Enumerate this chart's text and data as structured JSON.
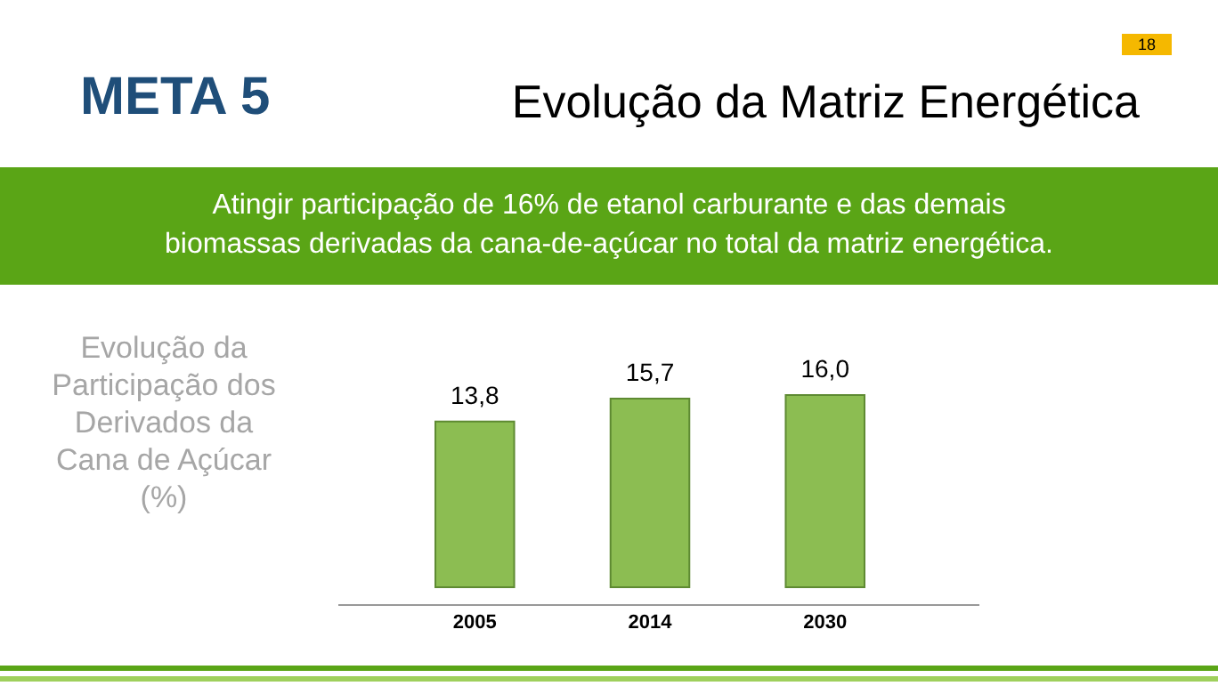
{
  "chart_data": {
    "type": "bar",
    "title": "META 5",
    "subtitle": "Evolução da Matriz Energética",
    "ylabel": "Evolução da Participação dos Derivados da Cana de Açúcar (%)",
    "annotations": [
      "18",
      "Atingir participação de 16% de etanol carburante e das demais biomassas derivadas da cana-de-açúcar no total da matriz energética."
    ],
    "categories": [
      "2005",
      "2014",
      "2030"
    ],
    "values": [
      13.8,
      15.7,
      16.0
    ],
    "color": "#8cbd52",
    "value_labels": [
      "13,8",
      "15,7",
      "16,0"
    ]
  }
}
